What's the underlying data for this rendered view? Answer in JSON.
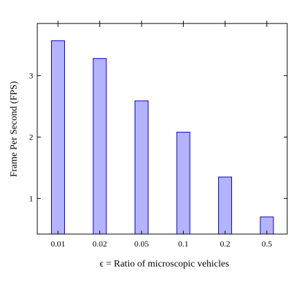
{
  "chart_data": {
    "type": "bar",
    "categories": [
      "0.01",
      "0.02",
      "0.05",
      "0.1",
      "0.2",
      "0.5"
    ],
    "values": [
      3.57,
      3.28,
      2.59,
      2.08,
      1.35,
      0.7
    ],
    "xlabel": "ϵ = Ratio of microscopic vehicles",
    "ylabel": "Frame Per Second (FPS)",
    "ylim": [
      0.42,
      3.85
    ],
    "yticks": [
      1,
      2,
      3
    ],
    "grid": false,
    "legend": "none",
    "colors": {
      "bar_fill": "#b3b3ff",
      "bar_stroke": "#0000cc",
      "axis": "#000000"
    }
  }
}
